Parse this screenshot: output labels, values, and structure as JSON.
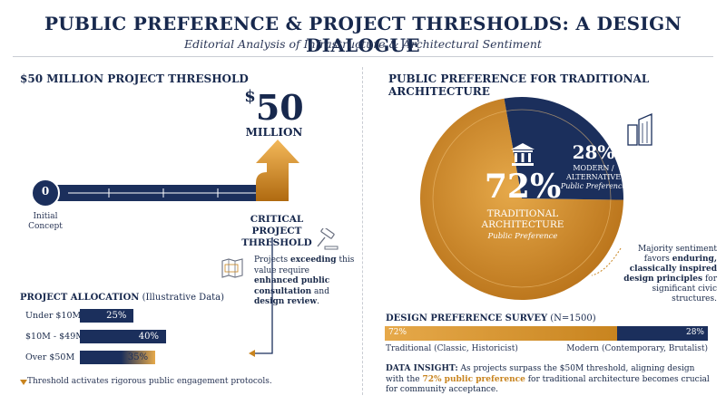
{
  "header": {
    "title": "PUBLIC PREFERENCE & PROJECT THRESHOLDS: A DESIGN DIALOGUE",
    "subtitle": "Editorial Analysis of Infrastructure & Architectural Sentiment"
  },
  "left": {
    "heading": "$50 MILLION PROJECT THRESHOLD",
    "big_dollar": "$",
    "big_number": "50",
    "big_unit": "MILLION",
    "start_value": "0",
    "start_label_line1": "Initial",
    "start_label_line2": "Concept",
    "critical_line1": "CRITICAL PROJECT",
    "critical_line2": "THRESHOLD",
    "note_parts": [
      "Projects ",
      "exceeding",
      " this value require ",
      "enhanced public consultation",
      " and ",
      "design review",
      "."
    ],
    "allocation": {
      "heading_bold": "PROJECT ALLOCATION",
      "heading_rest": " (Illustrative Data)",
      "rows": [
        {
          "label": "Under $10M",
          "value": "25%",
          "pct": 25
        },
        {
          "label": "$10M - $49M",
          "value": "40%",
          "pct": 40
        },
        {
          "label": "Over $50M",
          "value": "35%",
          "pct": 35
        }
      ],
      "footnote": "Threshold activates rigorous public engagement protocols."
    }
  },
  "right": {
    "heading": "PUBLIC PREFERENCE FOR TRADITIONAL ARCHITECTURE",
    "pie": {
      "traditional_value": "72%",
      "traditional_line1": "TRADITIONAL",
      "traditional_line2": "ARCHITECTURE",
      "traditional_sub": "Public Preference",
      "modern_value": "28%",
      "modern_line1": "MODERN /",
      "modern_line2": "ALTERNATIVE",
      "modern_sub": "Public Preference"
    },
    "side_note_parts": [
      "Majority sentiment favors ",
      "enduring, classically inspired design principles",
      " for significant civic structures."
    ],
    "survey": {
      "heading_bold": "DESIGN PREFERENCE SURVEY",
      "heading_rest": " (N=1500)",
      "left_value": "72%",
      "right_value": "28%",
      "left_label": "Traditional (Classic, Historicist)",
      "right_label": "Modern (Contemporary, Brutalist)"
    },
    "insight": {
      "label": "DATA INSIGHT:",
      "text1": " As projects surpass the $50M threshold, aligning design with the ",
      "highlight": "72% public preference",
      "text2": " for traditional architecture becomes crucial for community acceptance."
    }
  },
  "chart_data": [
    {
      "type": "bar",
      "title": "PROJECT ALLOCATION (Illustrative Data)",
      "categories": [
        "Under $10M",
        "$10M - $49M",
        "Over $50M"
      ],
      "values": [
        25,
        40,
        35
      ]
    },
    {
      "type": "pie",
      "categories": [
        "TRADITIONAL ARCHITECTURE",
        "MODERN / ALTERNATIVE"
      ],
      "values": [
        72,
        28
      ]
    },
    {
      "type": "bar",
      "title": "DESIGN PREFERENCE SURVEY (N=1500)",
      "categories": [
        "Traditional (Classic, Historicist)",
        "Modern (Contemporary, Brutalist)"
      ],
      "values": [
        72,
        28
      ]
    }
  ],
  "colors": {
    "navy": "#1b2f5c",
    "gold": "#c8841f",
    "gold_light": "#e6a94a"
  }
}
